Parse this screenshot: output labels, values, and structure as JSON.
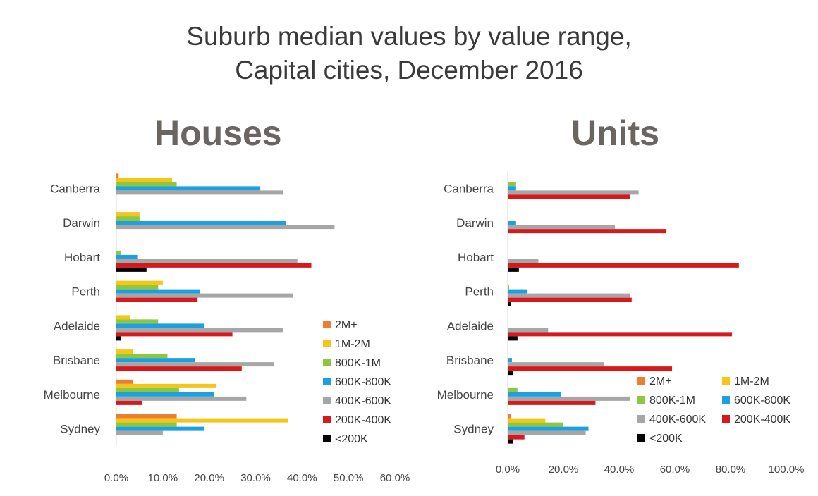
{
  "title": {
    "line1": "Suburb median values by value range,",
    "line2": "Capital cities, December 2016"
  },
  "colors": {
    "2M+": "#ed7d31",
    "1M-2M": "#f5c518",
    "800K-1M": "#8dc63f",
    "600K-800K": "#1ba1e2",
    "400K-600K": "#a6a6a6",
    "200K-400K": "#d7191c",
    "<200K": "#000000"
  },
  "chart_data": [
    {
      "type": "bar",
      "orientation": "horizontal",
      "title": "Houses",
      "categories": [
        "Canberra",
        "Darwin",
        "Hobart",
        "Perth",
        "Adelaide",
        "Brisbane",
        "Melbourne",
        "Sydney"
      ],
      "xlim": [
        0,
        60
      ],
      "xticks": [
        "0.0%",
        "10.0%",
        "20.0%",
        "30.0%",
        "40.0%",
        "50.0%",
        "60.0%"
      ],
      "legend": [
        "2M+",
        "1M-2M",
        "800K-1M",
        "600K-800K",
        "400K-600K",
        "200K-400K",
        "<200K"
      ],
      "legend_position": "right",
      "series": [
        {
          "name": "2M+",
          "values": [
            0.5,
            0,
            0,
            0,
            0,
            0,
            3.5,
            13
          ]
        },
        {
          "name": "1M-2M",
          "values": [
            12,
            5,
            0,
            10,
            3,
            3.5,
            21.5,
            37
          ]
        },
        {
          "name": "800K-1M",
          "values": [
            13,
            5,
            1,
            9,
            9,
            11,
            13.5,
            13
          ]
        },
        {
          "name": "600K-800K",
          "values": [
            31,
            36.5,
            4.5,
            18,
            19,
            17,
            21,
            19
          ]
        },
        {
          "name": "400K-600K",
          "values": [
            36,
            47,
            39,
            38,
            36,
            34,
            28,
            10
          ]
        },
        {
          "name": "200K-400K",
          "values": [
            0,
            0,
            42,
            17.5,
            25,
            27,
            5.5,
            0
          ]
        },
        {
          "name": "<200K",
          "values": [
            0,
            0,
            6.5,
            0,
            1,
            0,
            0,
            0
          ]
        }
      ]
    },
    {
      "type": "bar",
      "orientation": "horizontal",
      "title": "Units",
      "categories": [
        "Canberra",
        "Darwin",
        "Hobart",
        "Perth",
        "Adelaide",
        "Brisbane",
        "Melbourne",
        "Sydney"
      ],
      "xlim": [
        0,
        100
      ],
      "xticks": [
        "0.0%",
        "20.0%",
        "40.0%",
        "60.0%",
        "80.0%",
        "100.0%"
      ],
      "legend": [
        "2M+",
        "1M-2M",
        "800K-1M",
        "600K-800K",
        "400K-600K",
        "200K-400K",
        "<200K"
      ],
      "legend_position": "bottom-right",
      "series": [
        {
          "name": "2M+",
          "values": [
            0,
            0,
            0,
            0,
            0,
            0,
            0,
            1
          ]
        },
        {
          "name": "1M-2M",
          "values": [
            0,
            0,
            0,
            0,
            0,
            0,
            0,
            13.5
          ]
        },
        {
          "name": "800K-1M",
          "values": [
            3,
            0,
            0,
            0.5,
            0,
            0,
            3.5,
            20
          ]
        },
        {
          "name": "600K-800K",
          "values": [
            3,
            3,
            0,
            7,
            0,
            1.5,
            19,
            29
          ]
        },
        {
          "name": "400K-600K",
          "values": [
            47,
            38.5,
            11,
            44,
            14.5,
            34.5,
            44,
            28
          ]
        },
        {
          "name": "200K-400K",
          "values": [
            44,
            57,
            83,
            44.5,
            80.5,
            59,
            31.5,
            6
          ]
        },
        {
          "name": "<200K",
          "values": [
            0,
            0,
            4,
            1,
            3.5,
            2,
            0,
            2
          ]
        }
      ]
    }
  ]
}
